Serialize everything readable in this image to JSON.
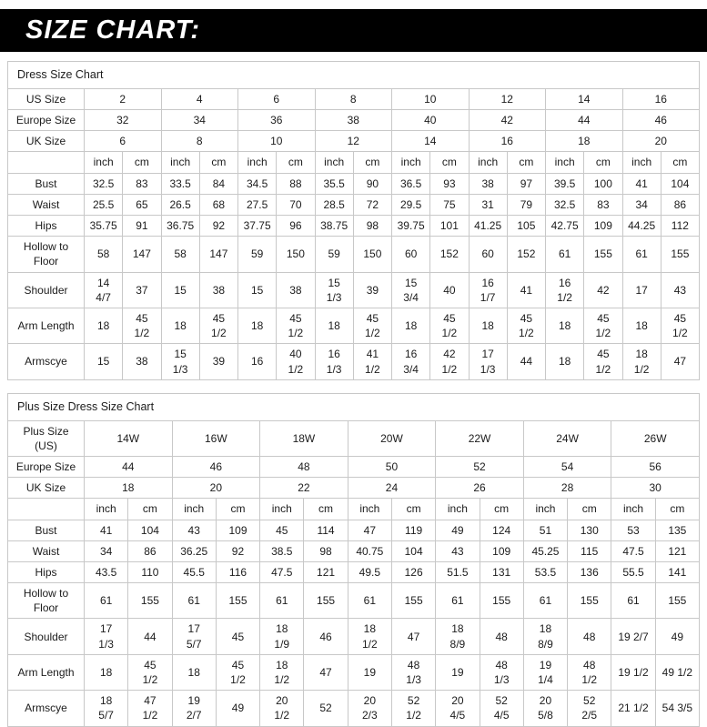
{
  "banner": {
    "title": "SIZE CHART:"
  },
  "tables": [
    {
      "title": "Dress Size Chart",
      "unit_labels": [
        "inch",
        "cm"
      ],
      "size_rows": [
        {
          "label": "US Size",
          "values": [
            "2",
            "4",
            "6",
            "8",
            "10",
            "12",
            "14",
            "16"
          ]
        },
        {
          "label": "Europe Size",
          "values": [
            "32",
            "34",
            "36",
            "38",
            "40",
            "42",
            "44",
            "46"
          ]
        },
        {
          "label": "UK Size",
          "values": [
            "6",
            "8",
            "10",
            "12",
            "14",
            "16",
            "18",
            "20"
          ]
        }
      ],
      "measure_rows": [
        {
          "label": "Bust",
          "values": [
            "32.5",
            "83",
            "33.5",
            "84",
            "34.5",
            "88",
            "35.5",
            "90",
            "36.5",
            "93",
            "38",
            "97",
            "39.5",
            "100",
            "41",
            "104"
          ]
        },
        {
          "label": "Waist",
          "values": [
            "25.5",
            "65",
            "26.5",
            "68",
            "27.5",
            "70",
            "28.5",
            "72",
            "29.5",
            "75",
            "31",
            "79",
            "32.5",
            "83",
            "34",
            "86"
          ]
        },
        {
          "label": "Hips",
          "values": [
            "35.75",
            "91",
            "36.75",
            "92",
            "37.75",
            "96",
            "38.75",
            "98",
            "39.75",
            "101",
            "41.25",
            "105",
            "42.75",
            "109",
            "44.25",
            "112"
          ]
        },
        {
          "label": "Hollow to Floor",
          "values": [
            "58",
            "147",
            "58",
            "147",
            "59",
            "150",
            "59",
            "150",
            "60",
            "152",
            "60",
            "152",
            "61",
            "155",
            "61",
            "155"
          ]
        },
        {
          "label": "Shoulder",
          "values": [
            "14\n4/7",
            "37",
            "15",
            "38",
            "15",
            "38",
            "15\n1/3",
            "39",
            "15\n3/4",
            "40",
            "16\n1/7",
            "41",
            "16\n1/2",
            "42",
            "17",
            "43"
          ]
        },
        {
          "label": "Arm Length",
          "values": [
            "18",
            "45\n1/2",
            "18",
            "45\n1/2",
            "18",
            "45\n1/2",
            "18",
            "45\n1/2",
            "18",
            "45\n1/2",
            "18",
            "45\n1/2",
            "18",
            "45\n1/2",
            "18",
            "45\n1/2"
          ]
        },
        {
          "label": "Armscye",
          "values": [
            "15",
            "38",
            "15\n1/3",
            "39",
            "16",
            "40\n1/2",
            "16\n1/3",
            "41\n1/2",
            "16\n3/4",
            "42\n1/2",
            "17\n1/3",
            "44",
            "18",
            "45\n1/2",
            "18\n1/2",
            "47"
          ]
        }
      ]
    },
    {
      "title": "Plus Size Dress Size Chart",
      "unit_labels": [
        "inch",
        "cm"
      ],
      "size_rows": [
        {
          "label": "Plus Size (US)",
          "values": [
            "14W",
            "16W",
            "18W",
            "20W",
            "22W",
            "24W",
            "26W"
          ]
        },
        {
          "label": "Europe Size",
          "values": [
            "44",
            "46",
            "48",
            "50",
            "52",
            "54",
            "56"
          ]
        },
        {
          "label": "UK Size",
          "values": [
            "18",
            "20",
            "22",
            "24",
            "26",
            "28",
            "30"
          ]
        }
      ],
      "measure_rows": [
        {
          "label": "Bust",
          "values": [
            "41",
            "104",
            "43",
            "109",
            "45",
            "114",
            "47",
            "119",
            "49",
            "124",
            "51",
            "130",
            "53",
            "135"
          ]
        },
        {
          "label": "Waist",
          "values": [
            "34",
            "86",
            "36.25",
            "92",
            "38.5",
            "98",
            "40.75",
            "104",
            "43",
            "109",
            "45.25",
            "115",
            "47.5",
            "121"
          ]
        },
        {
          "label": "Hips",
          "values": [
            "43.5",
            "110",
            "45.5",
            "116",
            "47.5",
            "121",
            "49.5",
            "126",
            "51.5",
            "131",
            "53.5",
            "136",
            "55.5",
            "141"
          ]
        },
        {
          "label": "Hollow to Floor",
          "values": [
            "61",
            "155",
            "61",
            "155",
            "61",
            "155",
            "61",
            "155",
            "61",
            "155",
            "61",
            "155",
            "61",
            "155"
          ]
        },
        {
          "label": "Shoulder",
          "values": [
            "17\n1/3",
            "44",
            "17\n5/7",
            "45",
            "18\n1/9",
            "46",
            "18\n1/2",
            "47",
            "18\n8/9",
            "48",
            "18\n8/9",
            "48",
            "19 2/7",
            "49"
          ]
        },
        {
          "label": "Arm Length",
          "values": [
            "18",
            "45\n1/2",
            "18",
            "45\n1/2",
            "18\n1/2",
            "47",
            "19",
            "48\n1/3",
            "19",
            "48\n1/3",
            "19\n1/4",
            "48\n1/2",
            "19 1/2",
            "49 1/2"
          ]
        },
        {
          "label": "Armscye",
          "values": [
            "18\n5/7",
            "47\n1/2",
            "19\n2/7",
            "49",
            "20\n1/2",
            "52",
            "20\n2/3",
            "52\n1/2",
            "20\n4/5",
            "52\n4/5",
            "20\n5/8",
            "52\n2/5",
            "21 1/2",
            "54 3/5"
          ]
        }
      ]
    }
  ]
}
